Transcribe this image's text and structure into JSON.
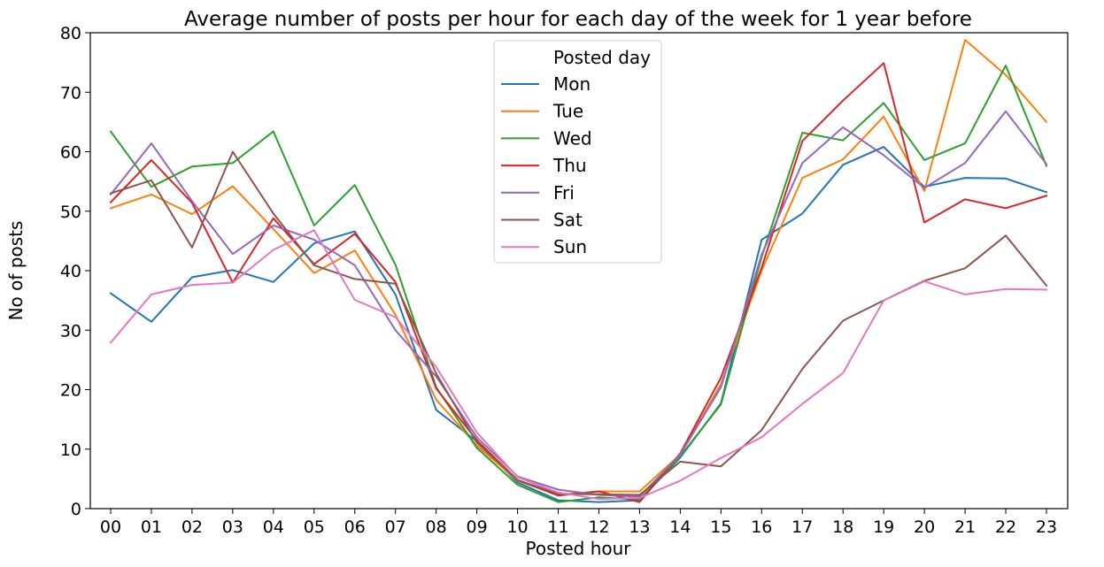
{
  "chart_data": {
    "type": "line",
    "title": "Average number of posts per hour for each day of the week for 1 year before",
    "xlabel": "Posted hour",
    "ylabel": "No of posts",
    "x": [
      "00",
      "01",
      "02",
      "03",
      "04",
      "05",
      "06",
      "07",
      "08",
      "09",
      "10",
      "11",
      "12",
      "13",
      "14",
      "15",
      "16",
      "17",
      "18",
      "19",
      "20",
      "21",
      "22",
      "23"
    ],
    "ylim": [
      0,
      80
    ],
    "yticks": [
      0,
      10,
      20,
      30,
      40,
      50,
      60,
      70,
      80
    ],
    "grid": false,
    "legend": {
      "title": "Posted day",
      "placement": "top-center"
    },
    "series": [
      {
        "name": "Mon",
        "color": "#1f77b4",
        "values": [
          36.2,
          31.4,
          38.9,
          40.1,
          38.1,
          44.6,
          46.6,
          36.0,
          16.6,
          11.3,
          4.4,
          1.4,
          1.1,
          1.4,
          8.6,
          17.7,
          45.2,
          49.6,
          57.8,
          60.8,
          54.1,
          55.6,
          55.5,
          53.2
        ]
      },
      {
        "name": "Tue",
        "color": "#ff7f0e",
        "values": [
          50.5,
          52.8,
          49.5,
          54.2,
          47.0,
          39.6,
          43.4,
          32.6,
          18.3,
          10.6,
          4.7,
          2.3,
          2.9,
          2.9,
          9.1,
          20.9,
          40.0,
          55.6,
          58.7,
          65.9,
          53.4,
          78.8,
          72.9,
          65.0
        ]
      },
      {
        "name": "Wed",
        "color": "#2ca02c",
        "values": [
          63.4,
          54.1,
          57.5,
          58.1,
          63.4,
          47.6,
          54.4,
          41.0,
          20.4,
          10.2,
          4.0,
          1.1,
          1.9,
          1.5,
          8.8,
          17.5,
          42.3,
          63.2,
          61.9,
          68.2,
          58.6,
          61.4,
          74.5,
          57.6
        ]
      },
      {
        "name": "Thu",
        "color": "#d62728",
        "values": [
          51.5,
          58.6,
          51.4,
          38.0,
          48.8,
          41.1,
          46.2,
          38.1,
          20.2,
          11.5,
          4.8,
          2.2,
          2.9,
          1.1,
          9.3,
          22.0,
          40.5,
          61.8,
          68.6,
          74.9,
          48.1,
          52.0,
          50.5,
          52.6
        ]
      },
      {
        "name": "Fri",
        "color": "#9467bd",
        "values": [
          52.8,
          61.4,
          51.7,
          42.8,
          47.6,
          45.2,
          40.9,
          30.0,
          22.2,
          12.0,
          5.4,
          3.2,
          2.3,
          2.0,
          9.1,
          20.4,
          42.7,
          58.1,
          64.1,
          59.4,
          53.9,
          58.1,
          66.8,
          57.9
        ]
      },
      {
        "name": "Sat",
        "color": "#8c564b",
        "values": [
          53.0,
          55.2,
          43.9,
          60.0,
          49.6,
          40.9,
          38.6,
          37.8,
          22.7,
          11.1,
          4.8,
          2.5,
          2.4,
          2.3,
          7.9,
          7.1,
          13.2,
          23.5,
          31.6,
          35.0,
          38.3,
          40.4,
          45.9,
          37.5
        ]
      },
      {
        "name": "Sun",
        "color": "#e377c2",
        "values": [
          27.9,
          36.0,
          37.6,
          38.0,
          43.5,
          46.8,
          35.1,
          32.2,
          23.8,
          12.8,
          5.3,
          2.7,
          1.6,
          1.8,
          4.7,
          8.5,
          12.0,
          17.6,
          22.8,
          35.0,
          38.2,
          36.0,
          36.9,
          36.8
        ]
      }
    ]
  }
}
